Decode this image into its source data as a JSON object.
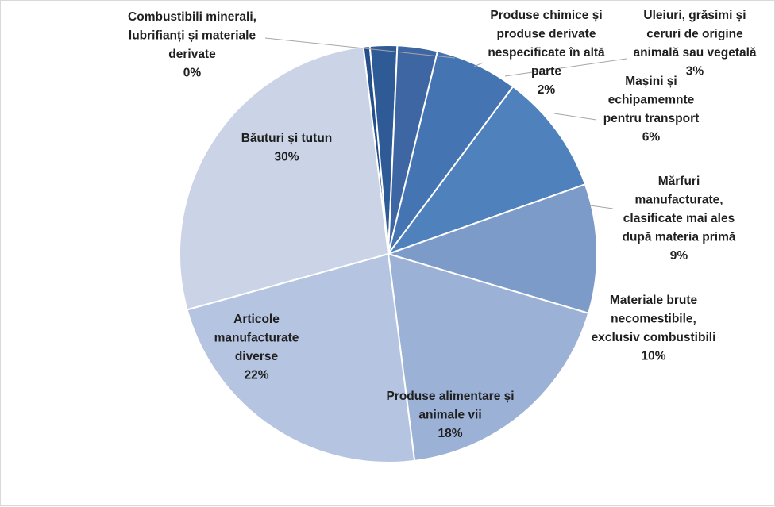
{
  "chart_data": {
    "type": "pie",
    "title": "",
    "slices": [
      {
        "name": "Combustibili minerali, lubrifianți și materiale derivate",
        "value": 0,
        "pct_label": "0%",
        "label_lines": [
          "Combustibili minerali,",
          "lubrifianți și materiale",
          "derivate"
        ],
        "color": "#254F8A"
      },
      {
        "name": "Produse chimice și produse derivate nespecificate în altă parte",
        "value": 2,
        "pct_label": "2%",
        "label_lines": [
          "Produse chimice și",
          "produse derivate",
          "nespecificate în altă",
          "parte"
        ],
        "color": "#2E5B96"
      },
      {
        "name": "Uleiuri, grăsimi și ceruri de origine animală sau vegetală",
        "value": 3,
        "pct_label": "3%",
        "label_lines": [
          "Uleiuri, grăsimi și",
          "ceruri de origine",
          "animală sau vegetală"
        ],
        "color": "#3D66A2"
      },
      {
        "name": "Mașini și echipamemnte pentru transport",
        "value": 6,
        "pct_label": "6%",
        "label_lines": [
          "Mașini și",
          "echipamemnte",
          "pentru transport"
        ],
        "color": "#4574B2"
      },
      {
        "name": "Mărfuri manufacturate, clasificate mai ales după materia primă",
        "value": 9,
        "pct_label": "9%",
        "label_lines": [
          "Mărfuri",
          "manufacturate,",
          "clasificate mai ales",
          "după materia primă"
        ],
        "color": "#4F81BD"
      },
      {
        "name": "Materiale brute necomestibile, exclusiv combustibili",
        "value": 10,
        "pct_label": "10%",
        "label_lines": [
          "Materiale brute",
          "necomestibile,",
          "exclusiv combustibili"
        ],
        "color": "#7D9BC8"
      },
      {
        "name": "Produse alimentare și animale vii",
        "value": 18,
        "pct_label": "18%",
        "label_lines": [
          "Produse alimentare și",
          "animale vii"
        ],
        "color": "#9CB1D6"
      },
      {
        "name": "Articole manufacturate diverse",
        "value": 22,
        "pct_label": "22%",
        "label_lines": [
          "Articole",
          "manufacturate",
          "diverse"
        ],
        "color": "#B5C4E0"
      },
      {
        "name": "Băuturi și tutun",
        "value": 30,
        "pct_label": "30%",
        "label_lines": [
          "Băuturi și tutun"
        ],
        "color": "#CAD4E6"
      }
    ],
    "legend": "none"
  }
}
